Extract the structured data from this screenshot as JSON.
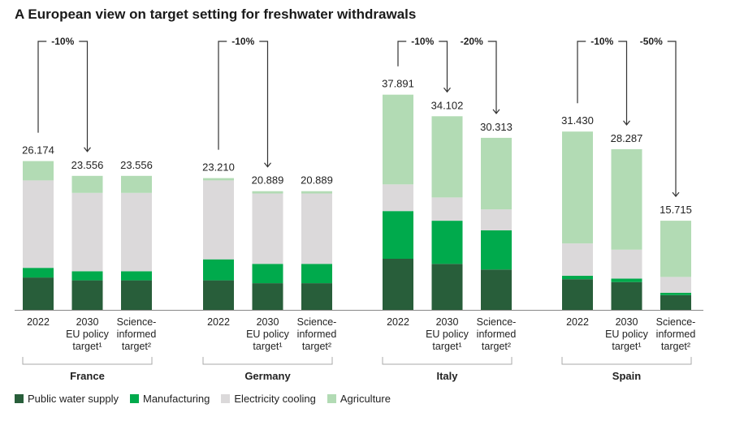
{
  "chart_data": {
    "type": "bar",
    "stacked": true,
    "title": "A European view on target setting for freshwater withdrawals",
    "bar_labels": [
      "2022",
      "2030 EU policy target¹",
      "Science-informed target²"
    ],
    "bar_label_lines": [
      [
        "2022"
      ],
      [
        "2030",
        "EU policy",
        "target¹"
      ],
      [
        "Science-",
        "informed",
        "target²"
      ]
    ],
    "legend_position": "bottom",
    "series": [
      {
        "name": "Public water supply",
        "color": "#285e3a"
      },
      {
        "name": "Manufacturing",
        "color": "#00aa4c"
      },
      {
        "name": "Electricity cooling",
        "color": "#dbd9da"
      },
      {
        "name": "Agriculture",
        "color": "#b2dbb4"
      }
    ],
    "groups": [
      {
        "country": "France",
        "totals": [
          "26.174",
          "23.556",
          "23.556"
        ],
        "values": [
          [
            5.7,
            1.7,
            15.4,
            3.4
          ],
          [
            5.2,
            1.6,
            13.8,
            3.0
          ],
          [
            5.2,
            1.6,
            13.8,
            3.0
          ]
        ],
        "changes": [
          {
            "label": "-10%",
            "from": 0,
            "to": 1
          }
        ]
      },
      {
        "country": "Germany",
        "totals": [
          "23.210",
          "20.889",
          "20.889"
        ],
        "values": [
          [
            5.2,
            3.7,
            13.9,
            0.4
          ],
          [
            4.7,
            3.4,
            12.4,
            0.4
          ],
          [
            4.7,
            3.4,
            12.4,
            0.4
          ]
        ],
        "changes": [
          {
            "label": "-10%",
            "from": 0,
            "to": 1
          }
        ]
      },
      {
        "country": "Italy",
        "totals": [
          "37.891",
          "34.102",
          "30.313"
        ],
        "values": [
          [
            9.0,
            8.4,
            4.7,
            15.8
          ],
          [
            8.1,
            7.6,
            4.1,
            14.3
          ],
          [
            7.1,
            6.9,
            3.7,
            12.6
          ]
        ],
        "changes": [
          {
            "label": "-10%",
            "from": 0,
            "to": 1
          },
          {
            "label": "-20%",
            "from": 1,
            "to": 2
          }
        ]
      },
      {
        "country": "Spain",
        "totals": [
          "31.430",
          "28.287",
          "15.715"
        ],
        "values": [
          [
            5.4,
            0.6,
            5.7,
            19.7
          ],
          [
            4.9,
            0.6,
            5.1,
            17.7
          ],
          [
            2.6,
            0.4,
            2.8,
            9.9
          ]
        ],
        "changes": [
          {
            "label": "-10%",
            "from": 0,
            "to": 1
          },
          {
            "label": "-50%",
            "from": 1,
            "to": 2
          }
        ]
      }
    ]
  }
}
